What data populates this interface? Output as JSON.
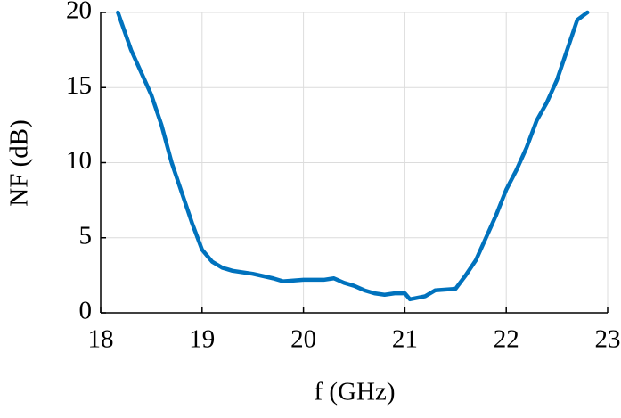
{
  "chart_data": {
    "type": "line",
    "xlabel": "f (GHz)",
    "ylabel": "NF (dB)",
    "x": [
      18.17,
      18.3,
      18.5,
      18.6,
      18.7,
      18.8,
      18.9,
      19.0,
      19.1,
      19.2,
      19.3,
      19.5,
      19.7,
      19.8,
      20.0,
      20.2,
      20.3,
      20.4,
      20.5,
      20.6,
      20.7,
      20.8,
      20.9,
      21.0,
      21.05,
      21.2,
      21.3,
      21.5,
      21.6,
      21.7,
      21.8,
      21.9,
      22.0,
      22.1,
      22.2,
      22.3,
      22.4,
      22.5,
      22.6,
      22.7,
      22.8
    ],
    "series": [
      {
        "name": "NF",
        "color": "#0072bd",
        "values": [
          20,
          17.5,
          14.5,
          12.5,
          10,
          8,
          6,
          4.2,
          3.4,
          3.0,
          2.8,
          2.6,
          2.3,
          2.1,
          2.2,
          2.2,
          2.3,
          2.0,
          1.8,
          1.5,
          1.3,
          1.2,
          1.3,
          1.3,
          0.9,
          1.1,
          1.5,
          1.6,
          2.5,
          3.5,
          5,
          6.5,
          8.2,
          9.5,
          11,
          12.8,
          14,
          15.5,
          17.5,
          19.5,
          20
        ]
      }
    ],
    "xlim": [
      18,
      23
    ],
    "xticks": [
      18,
      19,
      20,
      21,
      22,
      23
    ],
    "ylim": [
      0,
      20
    ],
    "yticks": [
      0,
      5,
      10,
      15,
      20
    ],
    "grid": true
  }
}
